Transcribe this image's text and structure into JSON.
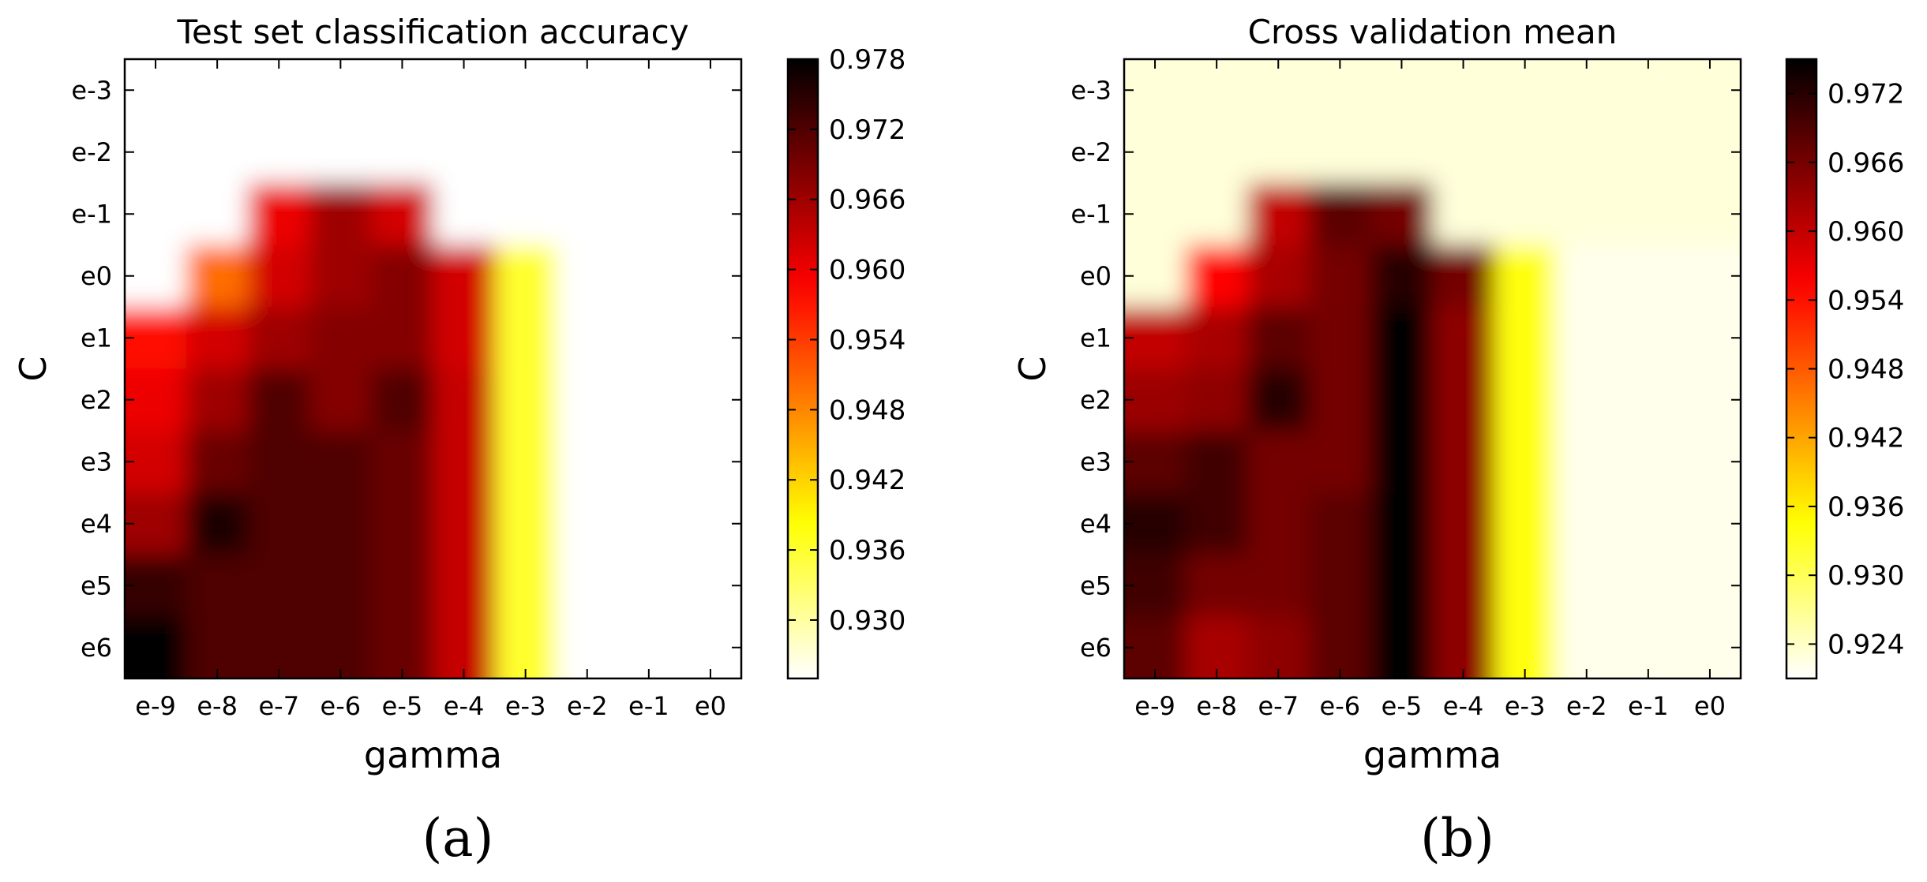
{
  "chart_data": [
    {
      "type": "heatmap",
      "panel_label": "(a)",
      "title": "Test set classification accuracy",
      "xlabel": "gamma",
      "ylabel": "C",
      "x_categories": [
        "e-9",
        "e-8",
        "e-7",
        "e-6",
        "e-5",
        "e-4",
        "e-3",
        "e-2",
        "e-1",
        "e0"
      ],
      "y_categories": [
        "e-3",
        "e-2",
        "e-1",
        "e0",
        "e1",
        "e2",
        "e3",
        "e4",
        "e5",
        "e6"
      ],
      "values": [
        [
          0.925,
          0.925,
          0.925,
          0.925,
          0.925,
          0.925,
          0.925,
          0.925,
          0.925,
          0.925
        ],
        [
          0.925,
          0.925,
          0.925,
          0.925,
          0.925,
          0.925,
          0.925,
          0.925,
          0.925,
          0.925
        ],
        [
          0.925,
          0.925,
          0.96,
          0.966,
          0.962,
          0.925,
          0.925,
          0.925,
          0.925,
          0.925
        ],
        [
          0.925,
          0.95,
          0.962,
          0.966,
          0.968,
          0.962,
          0.936,
          0.925,
          0.925,
          0.925
        ],
        [
          0.958,
          0.962,
          0.966,
          0.968,
          0.968,
          0.962,
          0.936,
          0.925,
          0.925,
          0.925
        ],
        [
          0.96,
          0.966,
          0.972,
          0.968,
          0.972,
          0.963,
          0.936,
          0.925,
          0.925,
          0.925
        ],
        [
          0.962,
          0.97,
          0.972,
          0.972,
          0.97,
          0.963,
          0.936,
          0.925,
          0.925,
          0.925
        ],
        [
          0.966,
          0.976,
          0.972,
          0.972,
          0.97,
          0.963,
          0.936,
          0.925,
          0.925,
          0.925
        ],
        [
          0.974,
          0.972,
          0.972,
          0.972,
          0.97,
          0.963,
          0.936,
          0.925,
          0.925,
          0.925
        ],
        [
          0.978,
          0.972,
          0.972,
          0.972,
          0.97,
          0.963,
          0.936,
          0.925,
          0.925,
          0.925
        ]
      ],
      "colorbar": {
        "min": 0.925,
        "max": 0.978,
        "ticks": [
          0.93,
          0.936,
          0.942,
          0.948,
          0.954,
          0.96,
          0.966,
          0.972,
          0.978
        ],
        "tick_labels": [
          "0.930",
          "0.936",
          "0.942",
          "0.948",
          "0.954",
          "0.960",
          "0.966",
          "0.972",
          "0.978"
        ]
      },
      "colormap": "hot_r",
      "grid": false
    },
    {
      "type": "heatmap",
      "panel_label": "(b)",
      "title": "Cross validation mean",
      "xlabel": "gamma",
      "ylabel": "C",
      "x_categories": [
        "e-9",
        "e-8",
        "e-7",
        "e-6",
        "e-5",
        "e-4",
        "e-3",
        "e-2",
        "e-1",
        "e0"
      ],
      "y_categories": [
        "e-3",
        "e-2",
        "e-1",
        "e0",
        "e1",
        "e2",
        "e3",
        "e4",
        "e5",
        "e6"
      ],
      "values": [
        [
          0.923,
          0.923,
          0.923,
          0.923,
          0.923,
          0.923,
          0.923,
          0.923,
          0.923,
          0.923
        ],
        [
          0.923,
          0.923,
          0.923,
          0.923,
          0.923,
          0.923,
          0.923,
          0.923,
          0.923,
          0.923
        ],
        [
          0.923,
          0.923,
          0.96,
          0.968,
          0.966,
          0.923,
          0.923,
          0.923,
          0.923,
          0.923
        ],
        [
          0.923,
          0.955,
          0.962,
          0.966,
          0.972,
          0.966,
          0.934,
          0.922,
          0.922,
          0.922
        ],
        [
          0.96,
          0.962,
          0.968,
          0.966,
          0.975,
          0.964,
          0.934,
          0.922,
          0.922,
          0.922
        ],
        [
          0.963,
          0.964,
          0.972,
          0.966,
          0.975,
          0.964,
          0.934,
          0.922,
          0.922,
          0.922
        ],
        [
          0.968,
          0.97,
          0.966,
          0.966,
          0.975,
          0.964,
          0.934,
          0.922,
          0.922,
          0.922
        ],
        [
          0.972,
          0.97,
          0.966,
          0.968,
          0.975,
          0.964,
          0.934,
          0.922,
          0.922,
          0.922
        ],
        [
          0.97,
          0.966,
          0.966,
          0.968,
          0.975,
          0.964,
          0.934,
          0.922,
          0.922,
          0.922
        ],
        [
          0.968,
          0.962,
          0.964,
          0.968,
          0.975,
          0.964,
          0.934,
          0.922,
          0.922,
          0.922
        ]
      ],
      "colorbar": {
        "min": 0.921,
        "max": 0.975,
        "ticks": [
          0.924,
          0.93,
          0.936,
          0.942,
          0.948,
          0.954,
          0.96,
          0.966,
          0.972
        ],
        "tick_labels": [
          "0.924",
          "0.930",
          "0.936",
          "0.942",
          "0.948",
          "0.954",
          "0.960",
          "0.966",
          "0.972"
        ]
      },
      "colormap": "hot_r",
      "grid": false
    }
  ]
}
